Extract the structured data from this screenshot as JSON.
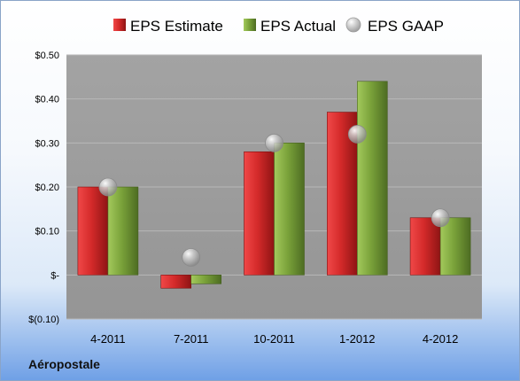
{
  "brand": "Aéropostale",
  "colors": {
    "eps_estimate": "#d42a2a",
    "eps_actual": "#7aa23a",
    "eps_gaap": "#a9a9a9",
    "plot_background": "#9c9c9c",
    "gridline": "#b8b8b8"
  },
  "chart_data": {
    "type": "bar",
    "categories": [
      "4-2011",
      "7-2011",
      "10-2011",
      "1-2012",
      "4-2012"
    ],
    "series": [
      {
        "name": "EPS Estimate",
        "type": "bar",
        "values": [
          0.2,
          -0.03,
          0.28,
          0.37,
          0.13
        ]
      },
      {
        "name": "EPS Actual",
        "type": "bar",
        "values": [
          0.2,
          -0.02,
          0.3,
          0.44,
          0.13
        ]
      },
      {
        "name": "EPS GAAP",
        "type": "scatter",
        "values": [
          0.2,
          0.04,
          0.3,
          0.32,
          0.13
        ]
      }
    ],
    "yticks": [
      -0.1,
      0.0,
      0.1,
      0.2,
      0.3,
      0.4,
      0.5
    ],
    "ytick_labels": [
      "$(0.10)",
      "$-",
      "$0.10",
      "$0.20",
      "$0.30",
      "$0.40",
      "$0.50"
    ],
    "ylim": [
      -0.1,
      0.5
    ],
    "grid": true,
    "legend_position": "top"
  }
}
